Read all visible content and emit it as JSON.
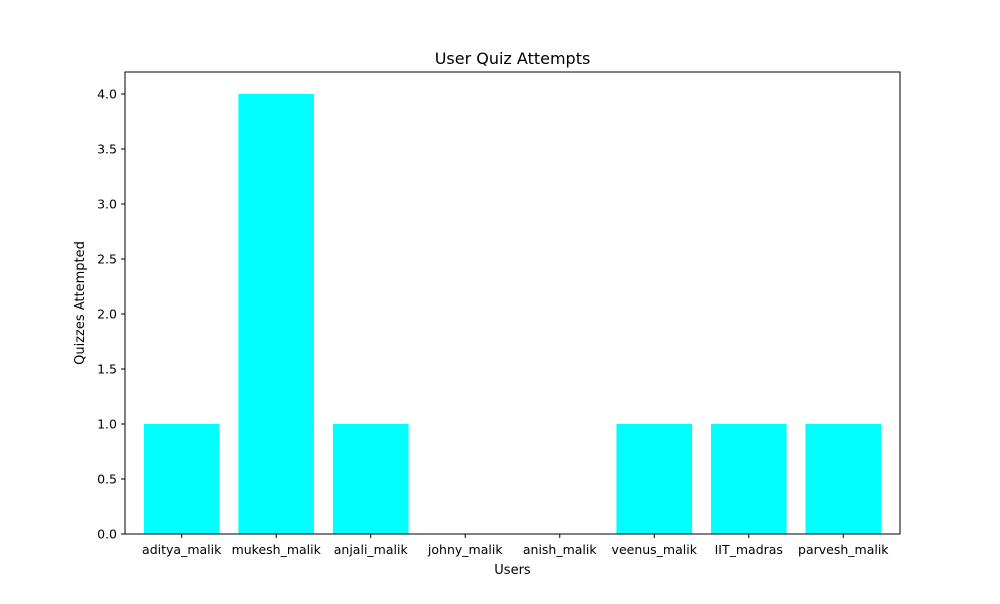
{
  "chart_data": {
    "type": "bar",
    "title": "User Quiz Attempts",
    "xlabel": "Users",
    "ylabel": "Quizzes Attempted",
    "categories": [
      "aditya_malik",
      "mukesh_malik",
      "anjali_malik",
      "johny_malik",
      "anish_malik",
      "veenus_malik",
      "IIT_madras",
      "parvesh_malik"
    ],
    "values": [
      1,
      4,
      1,
      0,
      0,
      1,
      1,
      1
    ],
    "ylim": [
      0,
      4.2
    ],
    "yticks": [
      "0.0",
      "0.5",
      "1.0",
      "1.5",
      "2.0",
      "2.5",
      "3.0",
      "3.5",
      "4.0"
    ],
    "bar_color": "#00ffff",
    "grid": false,
    "legend": "none"
  }
}
